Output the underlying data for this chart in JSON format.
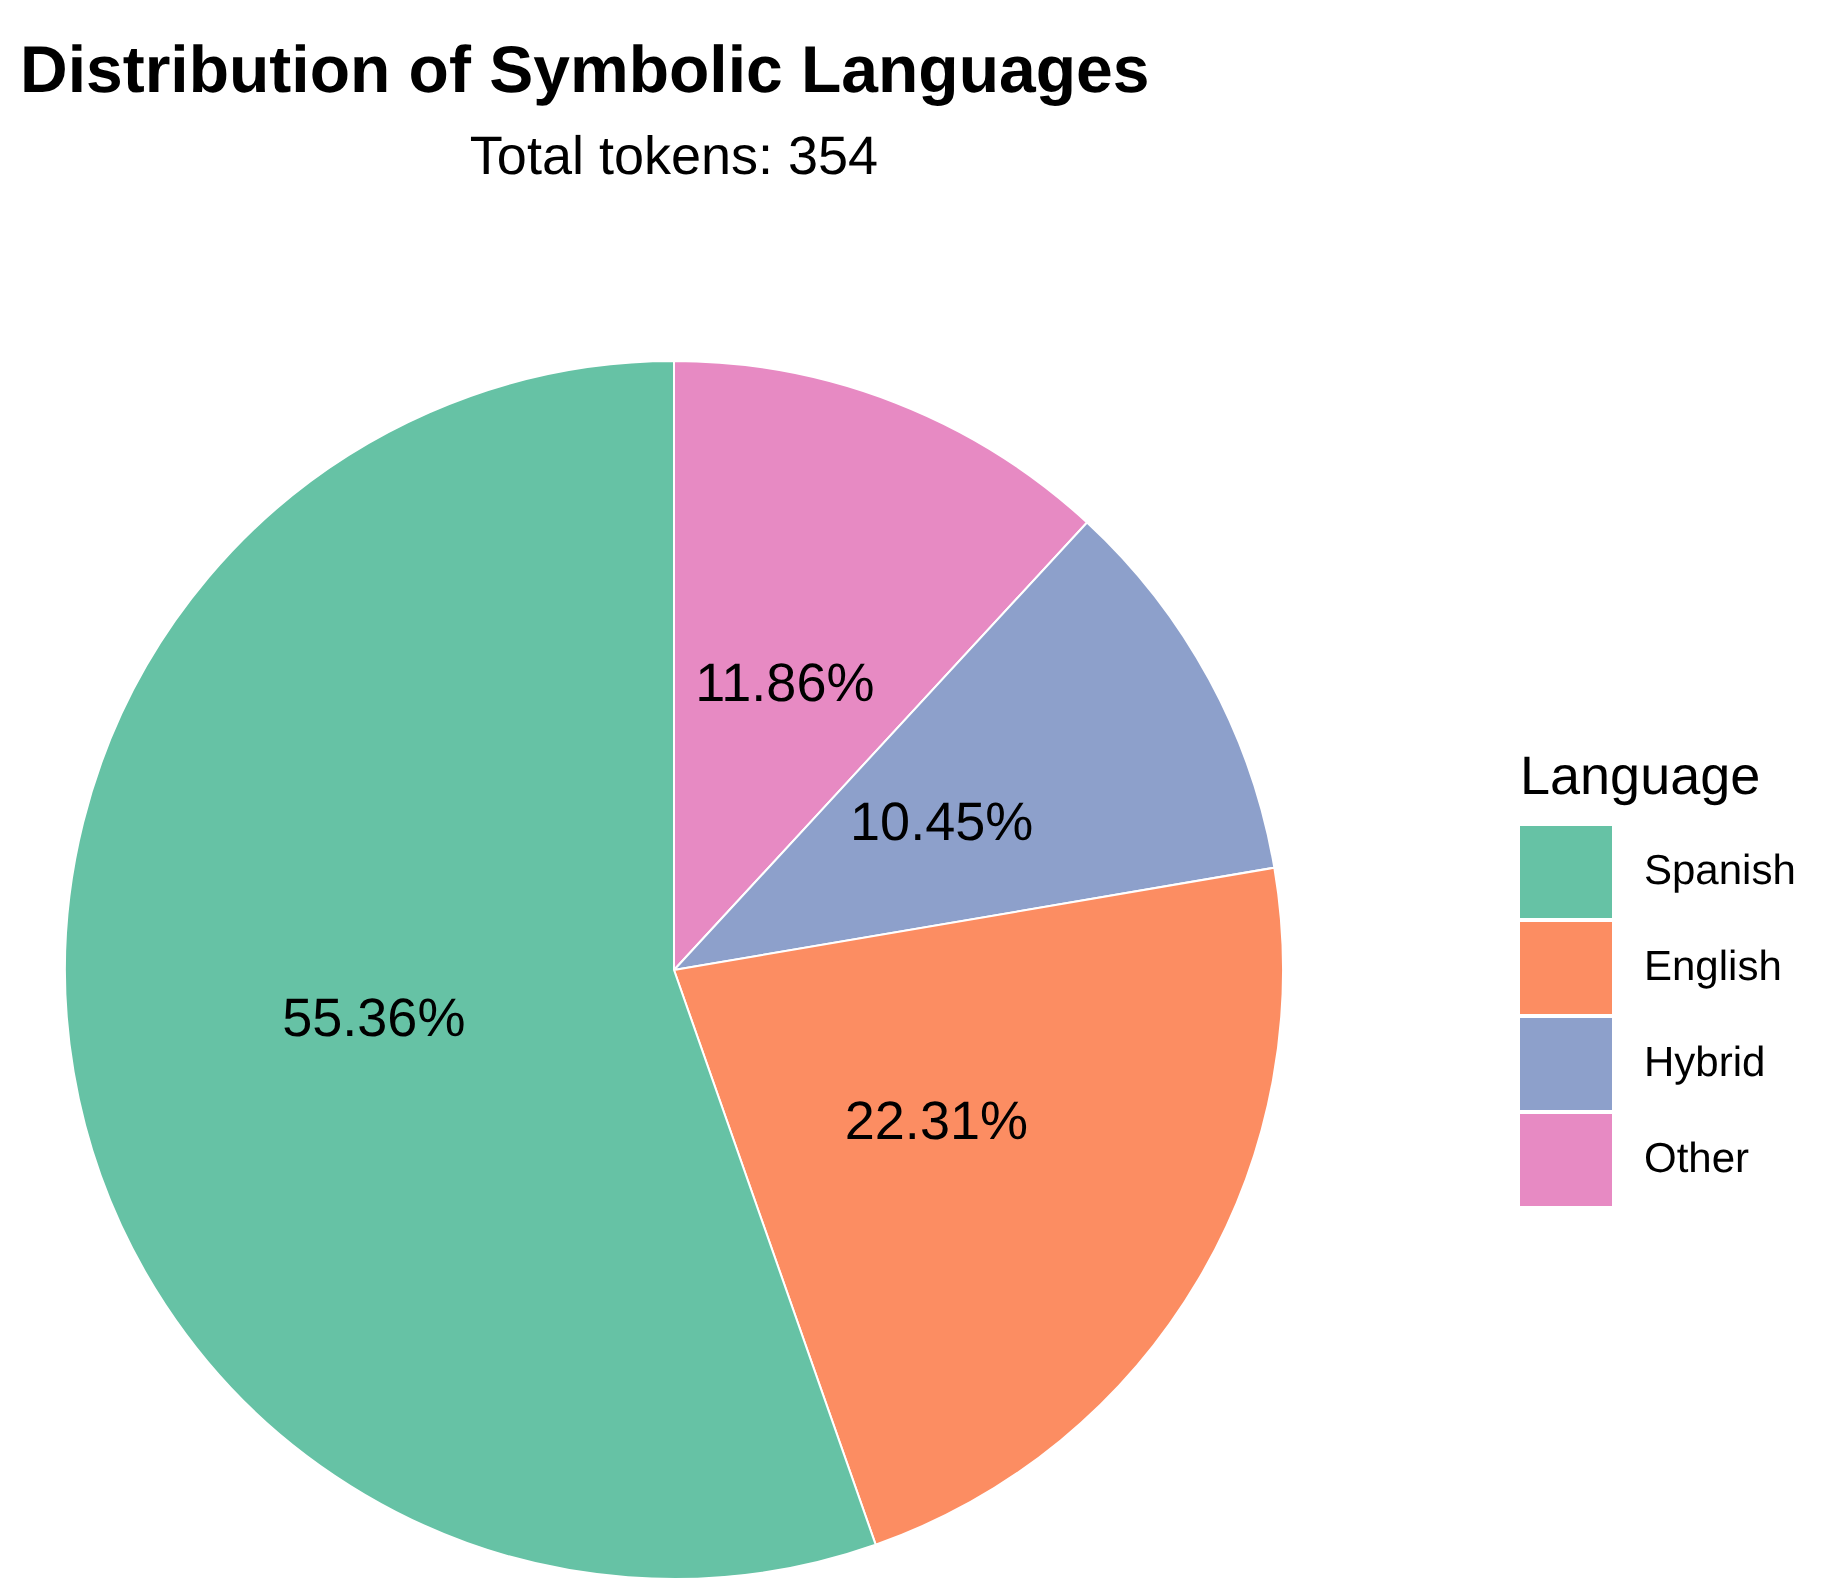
{
  "chart_data": {
    "type": "pie",
    "title": "Distribution of Symbolic Languages",
    "subtitle": "Total tokens: 354",
    "legend_title": "Language",
    "legend": "right",
    "categories": [
      "Spanish",
      "English",
      "Hybrid",
      "Other"
    ],
    "values": [
      55.36,
      22.31,
      10.45,
      11.86
    ],
    "colors": [
      "#66c2a5",
      "#fc8d62",
      "#8da0cb",
      "#e78ac3"
    ],
    "value_labels": [
      "55.36%",
      "22.31%",
      "10.45%",
      "11.86%"
    ]
  }
}
